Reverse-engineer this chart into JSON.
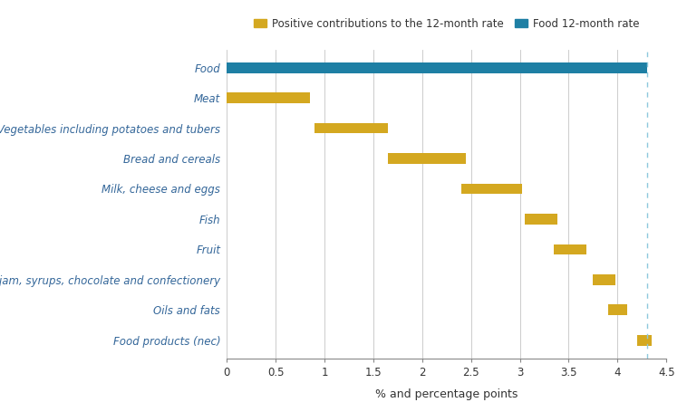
{
  "categories": [
    "Food products (nec)",
    "Oils and fats",
    "Sugar, jam, syrups, chocolate and confectionery",
    "Fruit",
    "Fish",
    "Milk, cheese and eggs",
    "Bread and cereals",
    "Vegetables including potatoes and tubers",
    "Meat",
    "Food"
  ],
  "bar_starts": [
    4.2,
    3.9,
    3.75,
    3.35,
    3.05,
    2.4,
    1.65,
    0.9,
    0.0,
    0.0
  ],
  "bar_ends": [
    4.35,
    4.1,
    3.98,
    3.68,
    3.38,
    3.02,
    2.45,
    1.65,
    0.85,
    4.3
  ],
  "bar_colors": [
    "#D4A820",
    "#D4A820",
    "#D4A820",
    "#D4A820",
    "#D4A820",
    "#D4A820",
    "#D4A820",
    "#D4A820",
    "#D4A820",
    "#1E7FA4"
  ],
  "dashed_line_x": 4.3,
  "dashed_line_color": "#8DC8DC",
  "xlabel": "% and percentage points",
  "xlim": [
    0,
    4.5
  ],
  "xticks": [
    0,
    0.5,
    1.0,
    1.5,
    2.0,
    2.5,
    3.0,
    3.5,
    4.0,
    4.5
  ],
  "legend_labels": [
    "Positive contributions to the 12-month rate",
    "Food 12-month rate"
  ],
  "legend_colors": [
    "#D4A820",
    "#1E7FA4"
  ],
  "grid_color": "#AAAAAA",
  "label_color": "#336699",
  "background_color": "#FFFFFF",
  "bar_height": 0.35,
  "label_fontsize": 8.5,
  "tick_fontsize": 8.5,
  "xlabel_fontsize": 9
}
